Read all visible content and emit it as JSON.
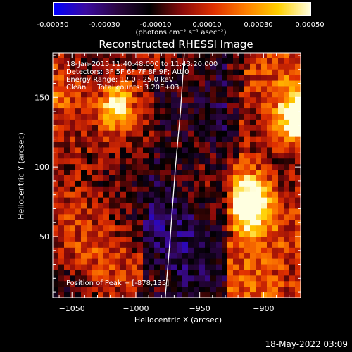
{
  "colorbar": {
    "ticks": [
      "-0.00050",
      "-0.00030",
      "-0.00010",
      "0.00010",
      "0.00030",
      "0.00050"
    ],
    "units": "(photons cm⁻² s⁻¹ asec⁻²)",
    "colors": [
      "#0000ff",
      "#3a0aa0",
      "#2a0540",
      "#000000",
      "#8a0a0a",
      "#e03000",
      "#ff8000",
      "#ffd000",
      "#ffffe0"
    ]
  },
  "info": {
    "line1": "18-Jan-2015 11:40:48.000 to 11:43:20.000",
    "line2": "Detectors: 3F 5F 6F 7F 8F 9F; Att 0",
    "line3": "Energy Range: 12.0 - 25.0 keV",
    "line4": "Clean     Total counts: 3.20E+03",
    "peak": "Position of Peak = [-878,135]"
  },
  "timestamp": "18-May-2022 03:09",
  "chart_data": {
    "type": "heatmap",
    "title": "Reconstructed RHESSI Image",
    "xlabel": "Heliocentric X (arcsec)",
    "ylabel": "Heliocentric Y (arcsec)",
    "xlim": [
      -1065,
      -871
    ],
    "ylim": [
      6,
      182
    ],
    "xticks": [
      -1050,
      -1000,
      -950,
      -900
    ],
    "xtick_labels": [
      "−1050",
      "−1000",
      "−950",
      "−900"
    ],
    "yticks": [
      50,
      100,
      150
    ],
    "ytick_labels": [
      "50",
      "100",
      "150"
    ],
    "limb_curve": {
      "x": [
        -977,
        -973,
        -969,
        -965,
        -962
      ],
      "y": [
        6,
        50,
        100,
        140,
        182
      ]
    },
    "bright_sources": [
      {
        "x": -1015,
        "y": 145,
        "intensity": 0.0005
      },
      {
        "x": -910,
        "y": 75,
        "intensity": 0.0005
      },
      {
        "x": -875,
        "y": 135,
        "intensity": 0.00045
      }
    ],
    "peak": [
      -878,
      135
    ]
  }
}
